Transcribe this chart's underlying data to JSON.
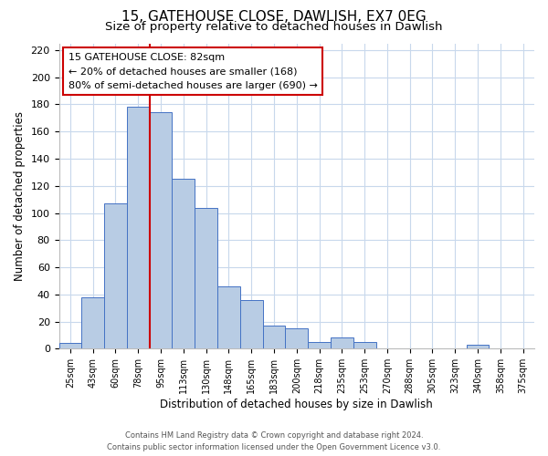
{
  "title": "15, GATEHOUSE CLOSE, DAWLISH, EX7 0EG",
  "subtitle": "Size of property relative to detached houses in Dawlish",
  "xlabel": "Distribution of detached houses by size in Dawlish",
  "ylabel": "Number of detached properties",
  "bar_labels": [
    "25sqm",
    "43sqm",
    "60sqm",
    "78sqm",
    "95sqm",
    "113sqm",
    "130sqm",
    "148sqm",
    "165sqm",
    "183sqm",
    "200sqm",
    "218sqm",
    "235sqm",
    "253sqm",
    "270sqm",
    "288sqm",
    "305sqm",
    "323sqm",
    "340sqm",
    "358sqm",
    "375sqm"
  ],
  "bar_values": [
    4,
    38,
    107,
    178,
    174,
    125,
    104,
    46,
    36,
    17,
    15,
    5,
    8,
    5,
    0,
    0,
    0,
    0,
    3,
    0,
    0
  ],
  "bar_color": "#b8cce4",
  "bar_edge_color": "#4472c4",
  "vline_x": 3.5,
  "vline_color": "#cc0000",
  "ylim": [
    0,
    225
  ],
  "yticks": [
    0,
    20,
    40,
    60,
    80,
    100,
    120,
    140,
    160,
    180,
    200,
    220
  ],
  "annotation_title": "15 GATEHOUSE CLOSE: 82sqm",
  "annotation_line1": "← 20% of detached houses are smaller (168)",
  "annotation_line2": "80% of semi-detached houses are larger (690) →",
  "annotation_box_color": "#ffffff",
  "annotation_box_edge": "#cc0000",
  "footer_line1": "Contains HM Land Registry data © Crown copyright and database right 2024.",
  "footer_line2": "Contains public sector information licensed under the Open Government Licence v3.0.",
  "background_color": "#ffffff",
  "grid_color": "#c8d8ec",
  "title_fontsize": 11,
  "subtitle_fontsize": 9.5
}
